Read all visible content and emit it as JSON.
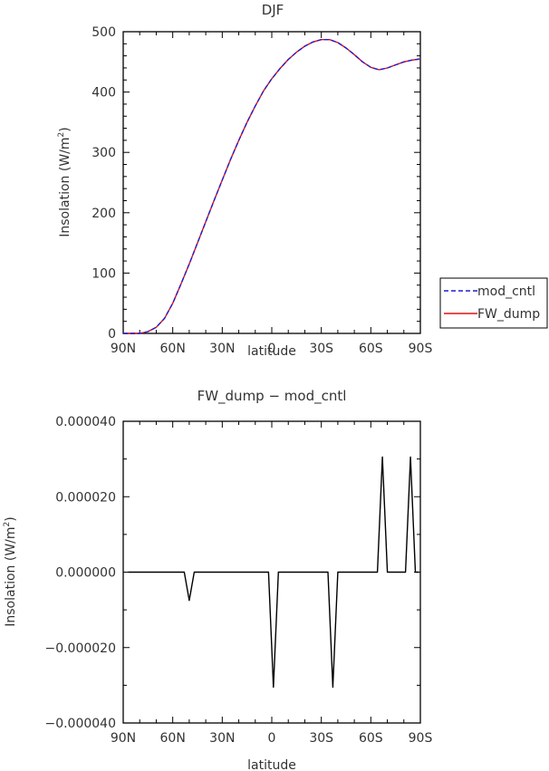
{
  "chart_data": [
    {
      "type": "line",
      "title": "DJF",
      "xlabel": "latitude",
      "ylabel": "Insolation (W/m",
      "ylabel_sup": "2",
      "ylabel_close": ")",
      "xticks": [
        {
          "v": 90,
          "label": "90N"
        },
        {
          "v": 60,
          "label": "60N"
        },
        {
          "v": 30,
          "label": "30N"
        },
        {
          "v": 0,
          "label": "0"
        },
        {
          "v": -30,
          "label": "30S"
        },
        {
          "v": -60,
          "label": "60S"
        },
        {
          "v": -90,
          "label": "90S"
        }
      ],
      "xlim": [
        90,
        -90
      ],
      "yticks": [
        0,
        100,
        200,
        300,
        400,
        500
      ],
      "ylim": [
        0,
        500
      ],
      "legend_position": "right",
      "series": [
        {
          "name": "mod_cntl",
          "color": "#1f1fd0",
          "dash": true,
          "x": [
            90,
            85,
            80,
            75,
            70,
            65,
            60,
            55,
            50,
            45,
            40,
            35,
            30,
            25,
            20,
            15,
            10,
            5,
            0,
            -5,
            -10,
            -15,
            -20,
            -25,
            -30,
            -35,
            -40,
            -45,
            -50,
            -55,
            -60,
            -65,
            -70,
            -75,
            -80,
            -85,
            -90
          ],
          "y": [
            0,
            0,
            0,
            3,
            10,
            25,
            50,
            82,
            115,
            150,
            185,
            220,
            254,
            288,
            320,
            350,
            377,
            402,
            422,
            439,
            454,
            466,
            476,
            483,
            487,
            487,
            482,
            473,
            462,
            450,
            441,
            437,
            440,
            445,
            450,
            453,
            455
          ]
        },
        {
          "name": "FW_dump",
          "color": "#e01010",
          "dash": false,
          "x": [
            90,
            85,
            80,
            75,
            70,
            65,
            60,
            55,
            50,
            45,
            40,
            35,
            30,
            25,
            20,
            15,
            10,
            5,
            0,
            -5,
            -10,
            -15,
            -20,
            -25,
            -30,
            -35,
            -40,
            -45,
            -50,
            -55,
            -60,
            -65,
            -70,
            -75,
            -80,
            -85,
            -90
          ],
          "y": [
            0,
            0,
            0,
            3,
            10,
            25,
            50,
            82,
            115,
            150,
            185,
            220,
            254,
            288,
            320,
            350,
            377,
            402,
            422,
            439,
            454,
            466,
            476,
            483,
            487,
            487,
            482,
            473,
            462,
            450,
            441,
            437,
            440,
            445,
            450,
            453,
            455
          ]
        }
      ]
    },
    {
      "type": "line",
      "title": "FW_dump − mod_cntl",
      "xlabel": "latitude",
      "ylabel": "Insolation (W/m",
      "ylabel_sup": "2",
      "ylabel_close": ")",
      "xticks": [
        {
          "v": 90,
          "label": "90N"
        },
        {
          "v": 60,
          "label": "60N"
        },
        {
          "v": 30,
          "label": "30N"
        },
        {
          "v": 0,
          "label": "0"
        },
        {
          "v": -30,
          "label": "30S"
        },
        {
          "v": -60,
          "label": "60S"
        },
        {
          "v": -90,
          "label": "90S"
        }
      ],
      "xlim": [
        90,
        -90
      ],
      "yticks": [
        4e-05,
        2e-05,
        0,
        -2e-05,
        -4e-05
      ],
      "ytick_labels": [
        "0.000040",
        "0.000020",
        "0.000000",
        "−0.000020",
        "−0.000040"
      ],
      "ylim": [
        -4e-05,
        4e-05
      ],
      "series": [
        {
          "name": "",
          "color": "#000000",
          "dash": false,
          "x": [
            87,
            53,
            50,
            47,
            2,
            -1,
            -4,
            -34,
            -37,
            -40,
            -64,
            -67,
            -70,
            -81,
            -84,
            -87,
            -89
          ],
          "y": [
            0,
            0,
            -7.5e-06,
            0,
            0,
            -3.05e-05,
            0,
            0,
            -3.05e-05,
            0,
            0,
            3.05e-05,
            0,
            0,
            3.05e-05,
            0,
            0
          ]
        }
      ]
    }
  ]
}
